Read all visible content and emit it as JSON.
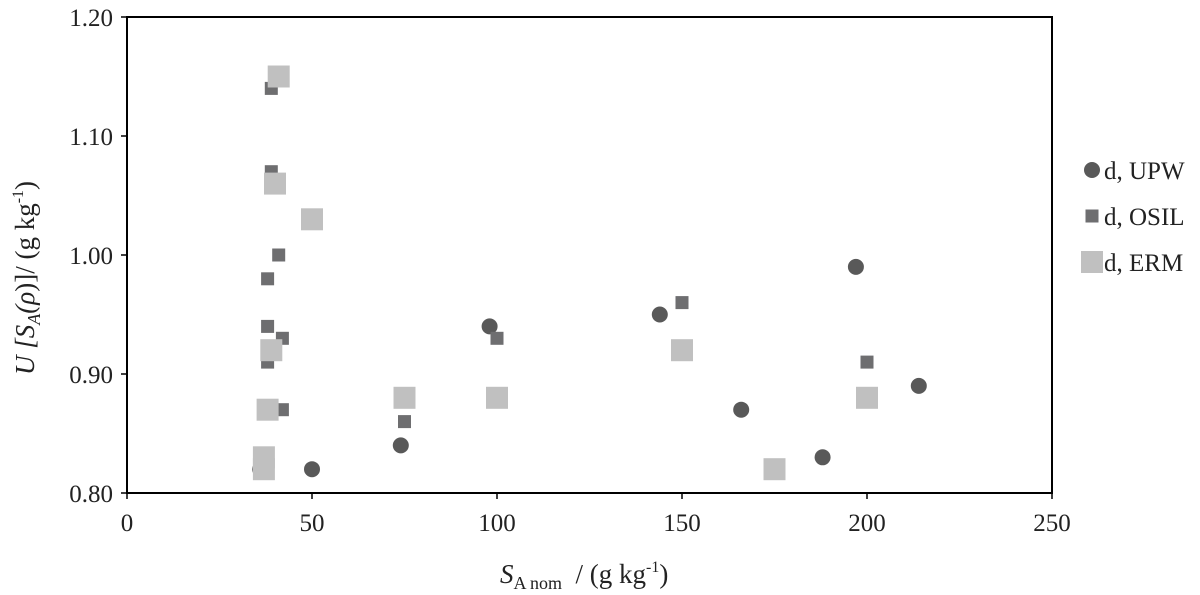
{
  "chart_data": {
    "type": "scatter",
    "title": "",
    "xlabel": {
      "main": "S",
      "sub": "A nom",
      "rest": "  / (g kg",
      "sup": "-1",
      "end": ")"
    },
    "ylabel": {
      "pre": "U [S",
      "sub": "A",
      "mid": "(",
      "italic": "ρ",
      "post": ")]/ (g kg",
      "sup": "-1",
      "end": ")"
    },
    "xlim": [
      0,
      250
    ],
    "ylim": [
      0.8,
      1.2
    ],
    "x_ticks": [
      "0",
      "50",
      "100",
      "150",
      "200",
      "250"
    ],
    "y_ticks": [
      "0.80",
      "0.90",
      "1.00",
      "1.10",
      "1.20"
    ],
    "grid": false,
    "legend_position": "right",
    "series": [
      {
        "name": "d, UPW",
        "marker": "circle",
        "color": "#595959",
        "points": [
          [
            36,
            0.82
          ],
          [
            50,
            0.82
          ],
          [
            74,
            0.84
          ],
          [
            98,
            0.94
          ],
          [
            144,
            0.95
          ],
          [
            166,
            0.87
          ],
          [
            188,
            0.83
          ],
          [
            197,
            0.99
          ],
          [
            214,
            0.89
          ]
        ]
      },
      {
        "name": "d, OSIL",
        "marker": "square",
        "color": "#6e6e70",
        "points": [
          [
            39,
            1.14
          ],
          [
            39,
            1.07
          ],
          [
            41,
            1.0
          ],
          [
            38,
            0.98
          ],
          [
            38,
            0.94
          ],
          [
            42,
            0.93
          ],
          [
            38,
            0.91
          ],
          [
            42,
            0.87
          ],
          [
            36,
            0.82
          ],
          [
            75,
            0.86
          ],
          [
            100,
            0.93
          ],
          [
            150,
            0.96
          ],
          [
            200,
            0.91
          ]
        ]
      },
      {
        "name": "d, ERM",
        "marker": "square-large",
        "color": "#c0c0c0",
        "points": [
          [
            41,
            1.15
          ],
          [
            40,
            1.06
          ],
          [
            50,
            1.03
          ],
          [
            39,
            0.92
          ],
          [
            38,
            0.87
          ],
          [
            37,
            0.83
          ],
          [
            37,
            0.82
          ],
          [
            75,
            0.88
          ],
          [
            100,
            0.88
          ],
          [
            150,
            0.92
          ],
          [
            175,
            0.82
          ],
          [
            200,
            0.88
          ]
        ]
      }
    ]
  }
}
